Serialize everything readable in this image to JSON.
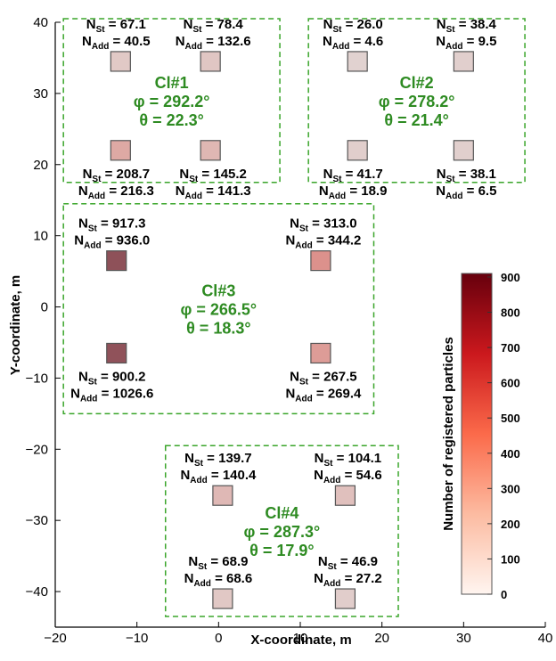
{
  "chart_data": {
    "type": "scatter",
    "xlabel": "X-coordinate, m",
    "ylabel": "Y-coordinate, m",
    "xlim": [
      -20,
      40
    ],
    "ylim": [
      -45,
      40
    ],
    "xticks": [
      -20,
      -10,
      0,
      10,
      20,
      30,
      40
    ],
    "yticks": [
      -40,
      -30,
      -20,
      -10,
      0,
      10,
      20,
      30,
      40
    ],
    "grid": false,
    "colors": {
      "cluster_text": "#2e8b22",
      "cluster_box": "#3aa52a",
      "marker_edge": "#555555",
      "colormap_low": "#fff5f0",
      "colormap_mid": "#ef3b2c",
      "colormap_high": "#67000d"
    },
    "colorbar": {
      "label": "Number of registered particles",
      "min": 0,
      "max": 910,
      "ticks": [
        0,
        100,
        200,
        300,
        400,
        500,
        600,
        700,
        800,
        900
      ]
    },
    "n_st_label": "N",
    "n_st_sub": "St",
    "n_add_label": "N",
    "n_add_sub": "Add",
    "clusters": [
      {
        "id": "Cl#1",
        "phi": "φ  = 292.2°",
        "theta": "θ  = 22.3°",
        "xrange": [
          -19,
          7.5
        ],
        "yrange": [
          17.5,
          40.5
        ],
        "detectors": [
          {
            "x": -12,
            "y": 34.5,
            "n_st": "67.1",
            "n_add": "40.5",
            "label_pos": "above",
            "color_value": 67.1
          },
          {
            "x": -1,
            "y": 34.5,
            "n_st": "78.4",
            "n_add": "132.6",
            "label_pos": "above",
            "color_value": 78.4
          },
          {
            "x": -12,
            "y": 22,
            "n_st": "208.7",
            "n_add": "216.3",
            "label_pos": "below",
            "color_value": 208.7
          },
          {
            "x": -1,
            "y": 22,
            "n_st": "145.2",
            "n_add": "141.3",
            "label_pos": "below",
            "color_value": 145.2
          }
        ]
      },
      {
        "id": "Cl#2",
        "phi": "φ  = 278.2°",
        "theta": "θ  = 21.4°",
        "xrange": [
          11,
          37.5
        ],
        "yrange": [
          17.5,
          40.5
        ],
        "detectors": [
          {
            "x": 17,
            "y": 34.5,
            "n_st": "26.0",
            "n_add": "4.6",
            "label_pos": "above",
            "color_value": 26.0
          },
          {
            "x": 30,
            "y": 34.5,
            "n_st": "38.4",
            "n_add": "9.5",
            "label_pos": "above",
            "color_value": 38.4
          },
          {
            "x": 17,
            "y": 22,
            "n_st": "41.7",
            "n_add": "18.9",
            "label_pos": "below",
            "color_value": 41.7
          },
          {
            "x": 30,
            "y": 22,
            "n_st": "38.1",
            "n_add": "6.5",
            "label_pos": "below",
            "color_value": 38.1
          }
        ]
      },
      {
        "id": "Cl#3",
        "phi": "φ  = 266.5°",
        "theta": "θ  = 18.3°",
        "xrange": [
          -19,
          19
        ],
        "yrange": [
          -15,
          14.5
        ],
        "detectors": [
          {
            "x": -12.5,
            "y": 6.5,
            "n_st": "917.3",
            "n_add": "936.0",
            "label_pos": "above",
            "color_value": 917.3
          },
          {
            "x": 12.5,
            "y": 6.5,
            "n_st": "313.0",
            "n_add": "344.2",
            "label_pos": "above",
            "color_value": 313.0
          },
          {
            "x": -12.5,
            "y": -6.5,
            "n_st": "900.2",
            "n_add": "1026.6",
            "label_pos": "below",
            "color_value": 900.2
          },
          {
            "x": 12.5,
            "y": -6.5,
            "n_st": "267.5",
            "n_add": "269.4",
            "label_pos": "below",
            "color_value": 267.5
          }
        ]
      },
      {
        "id": "Cl#4",
        "phi": "φ  = 287.3°",
        "theta": "θ  = 17.9°",
        "xrange": [
          -6.5,
          22
        ],
        "yrange": [
          -43.5,
          -19.5
        ],
        "detectors": [
          {
            "x": 0.5,
            "y": -26.5,
            "n_st": "139.7",
            "n_add": "140.4",
            "label_pos": "above",
            "color_value": 139.7
          },
          {
            "x": 15.5,
            "y": -26.5,
            "n_st": "104.1",
            "n_add": "54.6",
            "label_pos": "above",
            "color_value": 104.1
          },
          {
            "x": 0.5,
            "y": -41,
            "n_st": "68.9",
            "n_add": "68.6",
            "label_pos": "above",
            "color_value": 68.9
          },
          {
            "x": 15.5,
            "y": -41,
            "n_st": "46.9",
            "n_add": "27.2",
            "label_pos": "above",
            "color_value": 46.9
          }
        ]
      }
    ]
  }
}
